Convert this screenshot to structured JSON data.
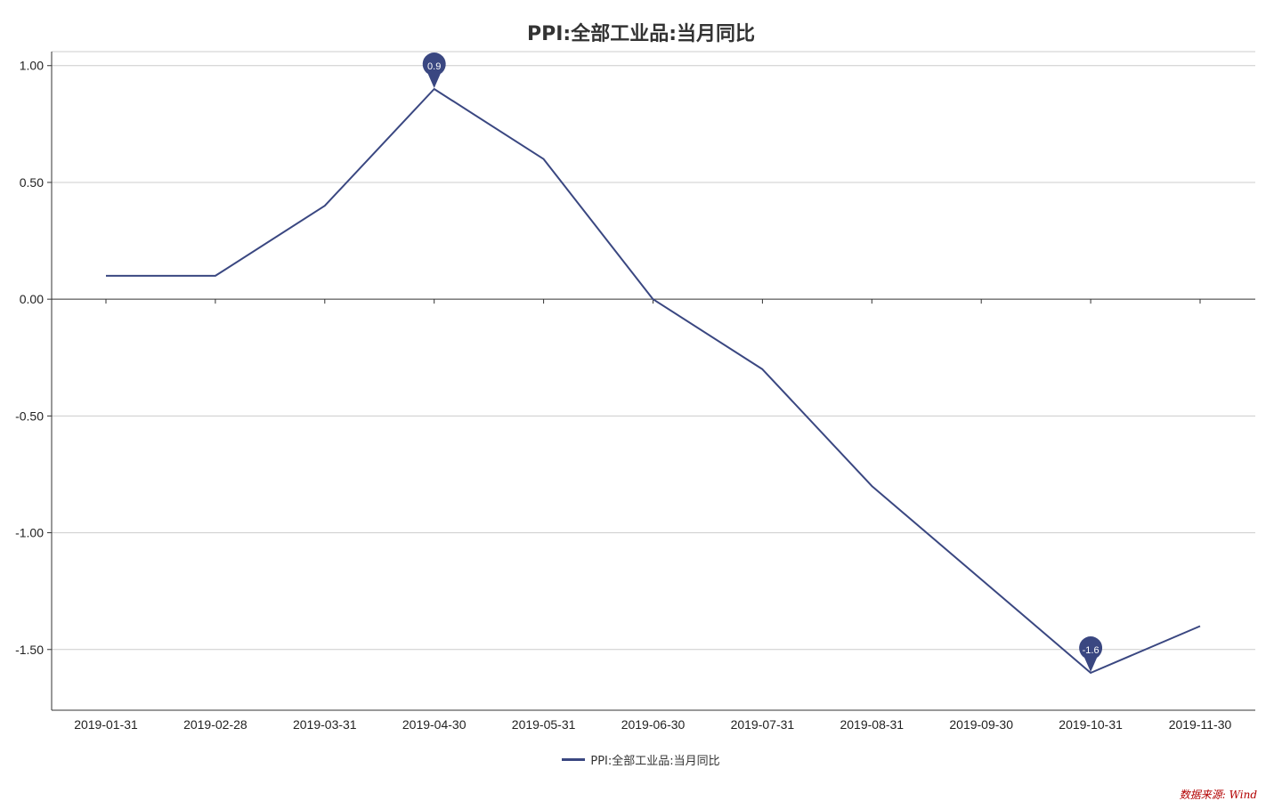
{
  "colors": {
    "series": "#3a4781",
    "grid": "#cccccc",
    "axis": "#333333",
    "source": "#b30000"
  },
  "chart_data": {
    "type": "line",
    "title": "PPI:全部工业品:当月同比",
    "xlabel": "",
    "ylabel": "",
    "categories": [
      "2019-01-31",
      "2019-02-28",
      "2019-03-31",
      "2019-04-30",
      "2019-05-31",
      "2019-06-30",
      "2019-07-31",
      "2019-08-31",
      "2019-09-30",
      "2019-10-31",
      "2019-11-30"
    ],
    "series": [
      {
        "name": "PPI:全部工业品:当月同比",
        "values": [
          0.1,
          0.1,
          0.4,
          0.9,
          0.6,
          0.0,
          -0.3,
          -0.8,
          -1.2,
          -1.6,
          -1.4
        ]
      }
    ],
    "yticks": [
      "1.00",
      "0.50",
      "0.00",
      "-0.50",
      "-1.00",
      "-1.50"
    ],
    "ylim": [
      -1.76,
      1.06
    ],
    "grid": true,
    "legend_position": "bottom-center",
    "markers": [
      {
        "category": "2019-04-30",
        "value": 0.9,
        "label": "0.9"
      },
      {
        "category": "2019-10-31",
        "value": -1.6,
        "label": "-1.6"
      }
    ]
  },
  "source_note": "数据来源: Wind"
}
